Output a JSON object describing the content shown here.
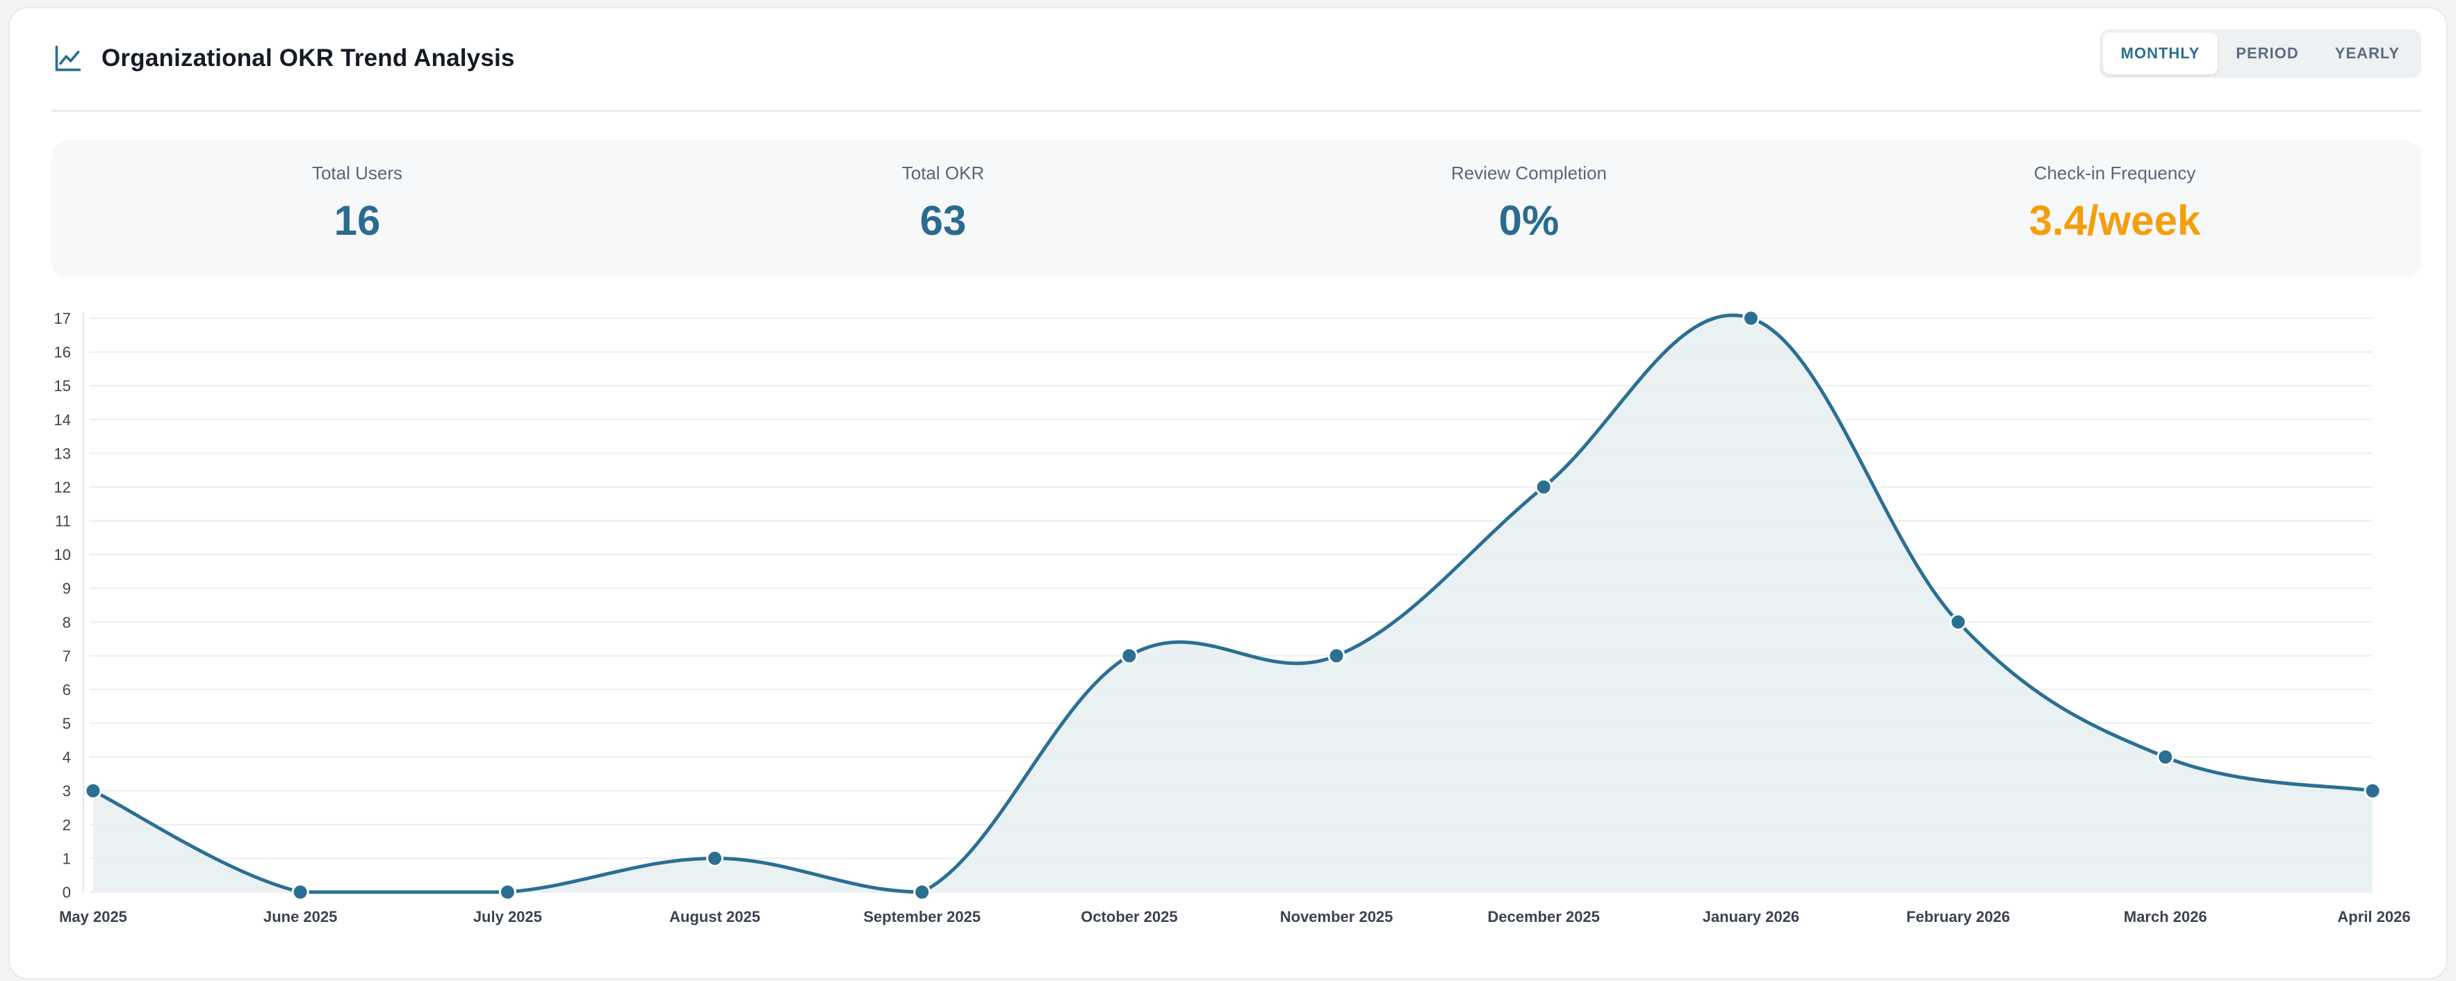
{
  "header": {
    "title": "Organizational OKR Trend Analysis",
    "icon": "line-chart-icon",
    "tabs": [
      {
        "label": "MONTHLY",
        "active": true
      },
      {
        "label": "PERIOD",
        "active": false
      },
      {
        "label": "YEARLY",
        "active": false
      }
    ]
  },
  "stats": [
    {
      "label": "Total Users",
      "value": "16"
    },
    {
      "label": "Total OKR",
      "value": "63"
    },
    {
      "label": "Review Completion",
      "value": "0%"
    },
    {
      "label": "Check-in Frequency",
      "value": "3.4/week"
    }
  ],
  "colors": {
    "accent": "#2b6f93",
    "highlight": "#f59e0b",
    "area_fill": "#e8eff2"
  },
  "chart_data": {
    "type": "area",
    "categories": [
      "May 2025",
      "June 2025",
      "July 2025",
      "August 2025",
      "September 2025",
      "October 2025",
      "November 2025",
      "December 2025",
      "January 2026",
      "February 2026",
      "March 2026",
      "April 2026"
    ],
    "values": [
      3,
      0,
      0,
      1,
      0,
      7,
      7,
      12,
      17,
      8,
      4,
      3
    ],
    "ylim": [
      0,
      17
    ],
    "yticks": [
      0,
      1,
      2,
      3,
      4,
      5,
      6,
      7,
      8,
      9,
      10,
      11,
      12,
      13,
      14,
      15,
      16,
      17
    ],
    "grid": true,
    "smooth": true,
    "title": "",
    "xlabel": "",
    "ylabel": ""
  }
}
